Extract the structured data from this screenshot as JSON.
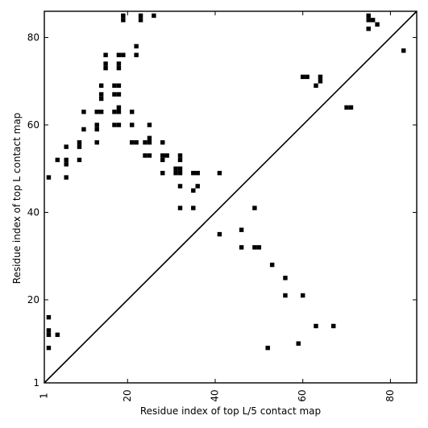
{
  "chart_data": {
    "type": "heatmap",
    "title": "",
    "xlabel": "Residue index of top L/5 contact map",
    "ylabel": "Residue index of top L contact map",
    "xlim": [
      1,
      86
    ],
    "ylim": [
      1,
      86
    ],
    "xticks": [
      1,
      20,
      40,
      60,
      80
    ],
    "yticks": [
      1,
      20,
      40,
      60,
      80
    ],
    "x_tick_rotation": -90,
    "grid": false,
    "mark_color": "#000000",
    "diagonal": true,
    "upper_points": [
      [
        19,
        85
      ],
      [
        23,
        85
      ],
      [
        26,
        85
      ],
      [
        19,
        84
      ],
      [
        23,
        84
      ],
      [
        22,
        78
      ],
      [
        15,
        76
      ],
      [
        18,
        76
      ],
      [
        19,
        76
      ],
      [
        22,
        76
      ],
      [
        15,
        74
      ],
      [
        18,
        74
      ],
      [
        15,
        73
      ],
      [
        18,
        73
      ],
      [
        14,
        69
      ],
      [
        17,
        69
      ],
      [
        18,
        69
      ],
      [
        14,
        67
      ],
      [
        17,
        67
      ],
      [
        18,
        67
      ],
      [
        14,
        66
      ],
      [
        18,
        64
      ],
      [
        13,
        63
      ],
      [
        14,
        63
      ],
      [
        17,
        63
      ],
      [
        18,
        63
      ],
      [
        21,
        63
      ],
      [
        10,
        63
      ],
      [
        13,
        60
      ],
      [
        17,
        60
      ],
      [
        18,
        60
      ],
      [
        21,
        60
      ],
      [
        25,
        60
      ],
      [
        13,
        59
      ],
      [
        10,
        59
      ],
      [
        22,
        56
      ],
      [
        21,
        56
      ],
      [
        24,
        56
      ],
      [
        25,
        56
      ],
      [
        25,
        57
      ],
      [
        28,
        56
      ],
      [
        13,
        56
      ],
      [
        9,
        56
      ],
      [
        9,
        55
      ],
      [
        6,
        55
      ],
      [
        24,
        53
      ],
      [
        25,
        53
      ],
      [
        28,
        53
      ],
      [
        29,
        53
      ],
      [
        32,
        53
      ],
      [
        28,
        52
      ],
      [
        32,
        52
      ],
      [
        4,
        52
      ],
      [
        6,
        52
      ],
      [
        9,
        52
      ],
      [
        6,
        51
      ],
      [
        31,
        50
      ],
      [
        32,
        50
      ],
      [
        28,
        49
      ],
      [
        31,
        49
      ],
      [
        32,
        49
      ],
      [
        35,
        49
      ],
      [
        36,
        49
      ],
      [
        41,
        49
      ],
      [
        2,
        48
      ],
      [
        6,
        48
      ],
      [
        32,
        46
      ],
      [
        36,
        46
      ],
      [
        35,
        45
      ],
      [
        32,
        41
      ],
      [
        35,
        41
      ],
      [
        49,
        41
      ],
      [
        41,
        35
      ],
      [
        46,
        36
      ],
      [
        46,
        32
      ],
      [
        49,
        32
      ],
      [
        50,
        32
      ],
      [
        53,
        28
      ],
      [
        56,
        25
      ],
      [
        56,
        21
      ],
      [
        60,
        21
      ],
      [
        75,
        85
      ],
      [
        76,
        84
      ],
      [
        75,
        84
      ],
      [
        77,
        83
      ],
      [
        75,
        82
      ],
      [
        83,
        77
      ],
      [
        60,
        71
      ],
      [
        61,
        71
      ],
      [
        64,
        71
      ],
      [
        64,
        70
      ],
      [
        63,
        69
      ],
      [
        70,
        64
      ],
      [
        71,
        64
      ]
    ],
    "lower_points": [
      [
        2,
        16
      ],
      [
        2,
        13
      ],
      [
        2,
        12
      ],
      [
        4,
        12
      ],
      [
        2,
        9
      ],
      [
        52,
        9
      ],
      [
        59,
        10
      ],
      [
        63,
        14
      ],
      [
        67,
        14
      ]
    ]
  }
}
